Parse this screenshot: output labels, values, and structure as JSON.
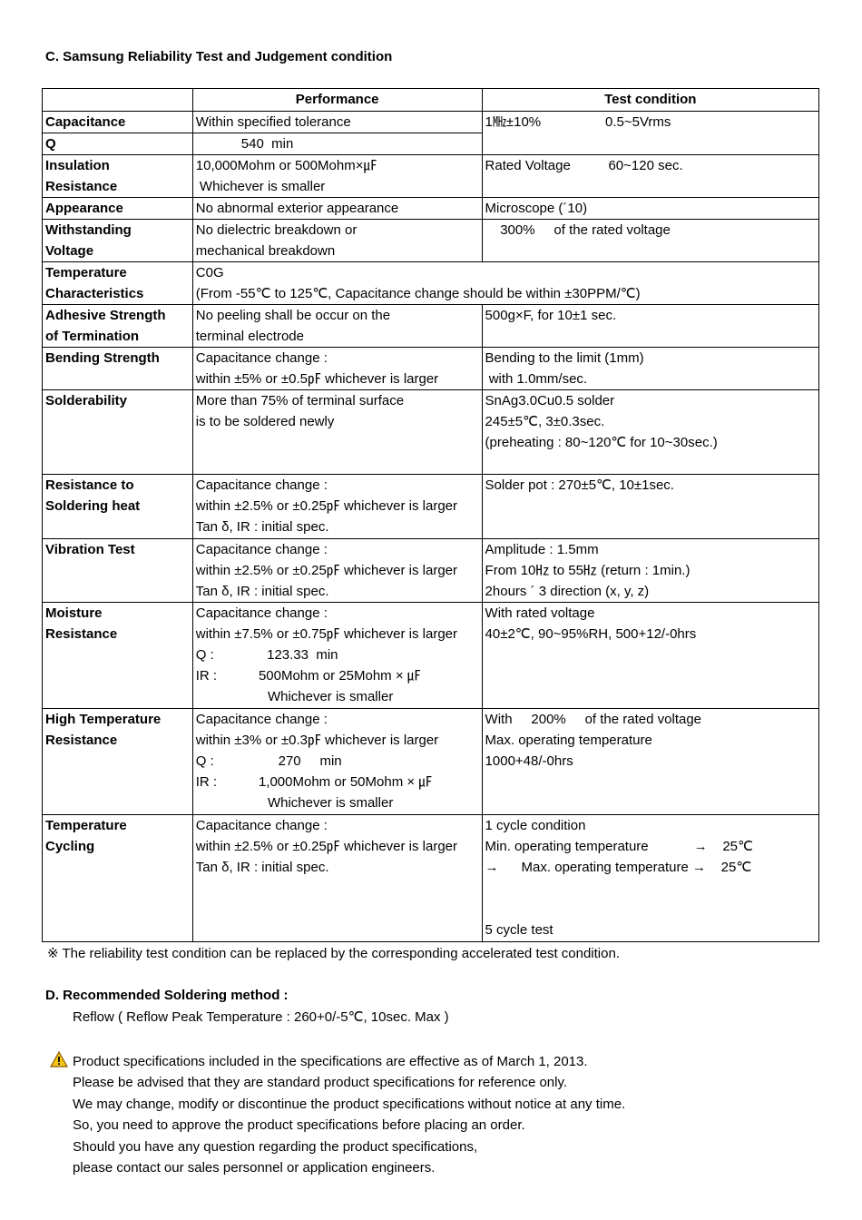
{
  "section_c_title": "C. Samsung Reliability Test and Judgement condition",
  "headers": [
    "",
    "Performance",
    "Test condition"
  ],
  "rows": [
    {
      "label": [
        "Capacitance"
      ],
      "perf": [
        "Within specified tolerance"
      ],
      "cond": [
        "1㎒±10%                 0.5~5Vrms"
      ],
      "cond_rowspan": 2
    },
    {
      "label": [
        "Q"
      ],
      "perf": [
        "            540  min"
      ]
    },
    {
      "label": [
        "Insulation",
        "Resistance"
      ],
      "perf": [
        "10,000Mohm or 500Mohm×㎌",
        " Whichever is smaller"
      ],
      "cond": [
        "Rated Voltage          60~120 sec."
      ]
    },
    {
      "label": [
        "Appearance"
      ],
      "perf": [
        "No abnormal exterior appearance"
      ],
      "cond": [
        "Microscope (´10)"
      ]
    },
    {
      "label": [
        "Withstanding",
        "Voltage"
      ],
      "perf": [
        "No dielectric breakdown or",
        "mechanical breakdown"
      ],
      "cond": [
        "    300%     of the rated voltage"
      ]
    },
    {
      "label": [
        "Temperature",
        "Characteristics"
      ],
      "perf": [
        "C0G",
        "(From -55℃ to 125℃, Capacitance change should be within ±30PPM/℃)"
      ],
      "perf_colspan": 2
    },
    {
      "label": [
        "Adhesive Strength",
        "of Termination"
      ],
      "perf": [
        "No peeling shall be occur on the",
        "terminal electrode"
      ],
      "cond": [
        "500g×F, for 10±1 sec."
      ]
    },
    {
      "label": [
        "Bending Strength"
      ],
      "perf": [
        "Capacitance change :",
        "within ±5% or ±0.5㎊ whichever is larger"
      ],
      "cond": [
        "Bending to the limit (1mm)",
        " with 1.0mm/sec."
      ]
    },
    {
      "label": [
        "Solderability"
      ],
      "perf": [
        "More than 75% of terminal surface",
        "is to be soldered newly"
      ],
      "cond": [
        "SnAg3.0Cu0.5 solder",
        "245±5℃, 3±0.3sec.",
        "(preheating : 80~120℃ for 10~30sec.)"
      ]
    },
    {
      "label": [
        "Resistance to",
        "Soldering heat"
      ],
      "perf": [
        "Capacitance change :",
        "within ±2.5% or ±0.25㎊ whichever is larger",
        "Tan δ, IR : initial spec."
      ],
      "cond": [
        "Solder pot : 270±5℃, 10±1sec."
      ]
    },
    {
      "label": [
        "Vibration Test"
      ],
      "perf": [
        "Capacitance change :",
        "within ±2.5% or ±0.25㎊ whichever is larger",
        "Tan δ, IR : initial spec."
      ],
      "cond": [
        "Amplitude : 1.5mm",
        "From 10㎐ to 55㎐ (return : 1min.)",
        "2hours ´ 3 direction (x, y, z)"
      ]
    },
    {
      "label": [
        "Moisture",
        "Resistance"
      ],
      "perf": [
        "Capacitance change :",
        "within ±7.5% or ±0.75㎊ whichever is larger",
        "Q :              123.33  min",
        "IR :           500Mohm or 25Mohm × ㎌",
        "                   Whichever is smaller"
      ],
      "cond": [
        "With rated voltage",
        "40±2℃, 90~95%RH, 500+12/-0hrs"
      ]
    },
    {
      "label": [
        "High Temperature",
        "Resistance"
      ],
      "perf": [
        "Capacitance change :",
        "within ±3% or ±0.3㎊ whichever is larger",
        "Q :                 270     min",
        "IR :           1,000Mohm or 50Mohm × ㎌",
        "                   Whichever is smaller"
      ],
      "cond": [
        "With     200%     of the rated voltage",
        "Max. operating temperature",
        "1000+48/-0hrs"
      ]
    },
    {
      "label": [
        "Temperature",
        "Cycling"
      ],
      "perf": [
        "Capacitance change :",
        "within ±2.5% or ±0.25㎊ whichever is larger",
        "Tan δ, IR : initial spec."
      ],
      "cond": [
        "1 cycle condition",
        "Min. operating temperature            →    25℃",
        "→      Max. operating temperature →    25℃",
        "",
        "",
        "5 cycle test"
      ]
    }
  ],
  "footnote": "※ The reliability test condition can be replaced by the corresponding accelerated test condition.",
  "section_d_title": "D. Recommended Soldering method :",
  "section_d_text": "Reflow ( Reflow Peak Temperature : 260+0/-5℃, 10sec. Max )",
  "notice_icon": "warning-triangle-icon",
  "notice_lines": [
    "Product specifications included in the specifications are effective as of March 1, 2013.",
    "Please be advised that they are standard product specifications for reference only.",
    "We may change, modify or discontinue the product specifications without notice at any time.",
    "So, you need to approve the product specifications before placing an order.",
    "Should you have any question regarding the product specifications,",
    "please contact our sales personnel or application engineers."
  ]
}
